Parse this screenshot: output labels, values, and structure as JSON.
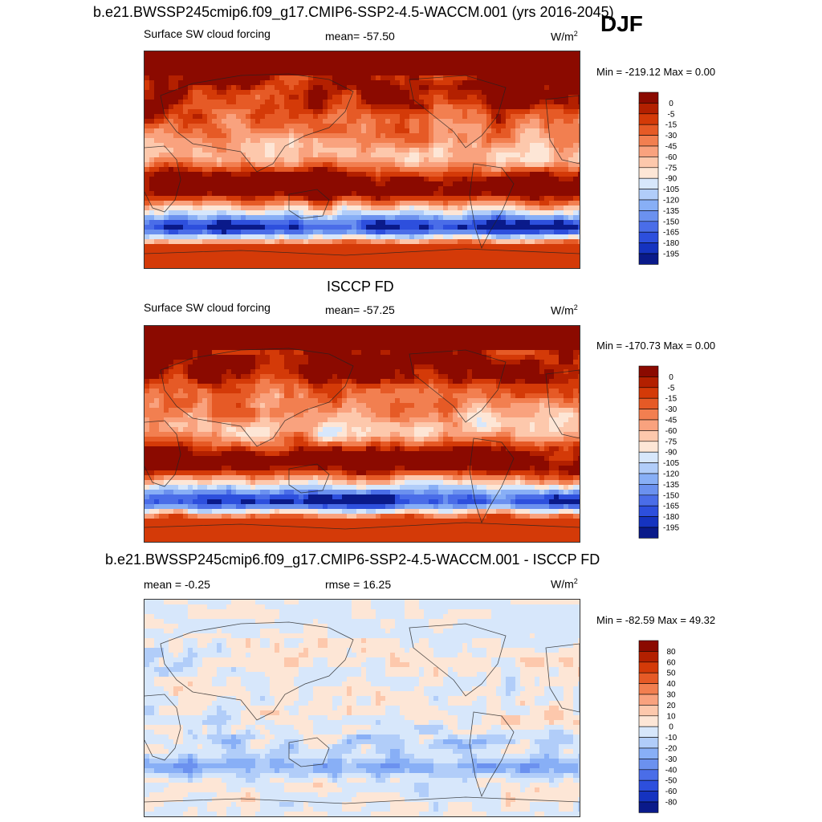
{
  "season": "DJF",
  "panels": [
    {
      "title": "b.e21.BWSSP245cmip6.f09_g17.CMIP6-SSP2-4.5-WACCM.001 (yrs 2016-2045)",
      "left_label": "Surface SW cloud forcing",
      "center_label": "mean= -57.50",
      "units": "W/m",
      "units_exp": "2",
      "minmax": "Min = -219.12 Max =   0.00",
      "scale": "abs"
    },
    {
      "title": "ISCCP FD",
      "left_label": "Surface SW cloud forcing",
      "center_label": "mean= -57.25",
      "units": "W/m",
      "units_exp": "2",
      "minmax": "Min = -170.73 Max =   0.00",
      "scale": "abs"
    },
    {
      "title": "b.e21.BWSSP245cmip6.f09_g17.CMIP6-SSP2-4.5-WACCM.001 - ISCCP FD",
      "left_label": "mean =  -0.25",
      "center_label": "rmse =  16.25",
      "units": "W/m",
      "units_exp": "2",
      "minmax": "Min = -82.59 Max =  49.32",
      "scale": "diff"
    }
  ],
  "chart_data": [
    {
      "type": "heatmap",
      "title": "b.e21.BWSSP245cmip6.f09_g17.CMIP6-SSP2-4.5-WACCM.001 (yrs 2016-2045)",
      "variable": "Surface SW cloud forcing",
      "units": "W/m^2",
      "mean": -57.5,
      "min": -219.12,
      "max": 0.0,
      "colorbar_levels": [
        "0",
        "-5",
        "-15",
        "-30",
        "-45",
        "-60",
        "-75",
        "-90",
        "-105",
        "-120",
        "-135",
        "-150",
        "-165",
        "-180",
        "-195"
      ],
      "colorbar_colors": [
        "#8b0a00",
        "#b32000",
        "#d43a08",
        "#e65a26",
        "#f27f50",
        "#f9a27e",
        "#fdc8ac",
        "#fde6d6",
        "#d7e7fb",
        "#b1cdf9",
        "#88aff6",
        "#6b91ef",
        "#4a6de8",
        "#2d4fdd",
        "#1533c0",
        "#0a1a8a"
      ]
    },
    {
      "type": "heatmap",
      "title": "ISCCP FD",
      "variable": "Surface SW cloud forcing",
      "units": "W/m^2",
      "mean": -57.25,
      "min": -170.73,
      "max": 0.0,
      "colorbar_levels": [
        "0",
        "-5",
        "-15",
        "-30",
        "-45",
        "-60",
        "-75",
        "-90",
        "-105",
        "-120",
        "-135",
        "-150",
        "-165",
        "-180",
        "-195"
      ],
      "colorbar_colors": [
        "#8b0a00",
        "#b32000",
        "#d43a08",
        "#e65a26",
        "#f27f50",
        "#f9a27e",
        "#fdc8ac",
        "#fde6d6",
        "#d7e7fb",
        "#b1cdf9",
        "#88aff6",
        "#6b91ef",
        "#4a6de8",
        "#2d4fdd",
        "#1533c0",
        "#0a1a8a"
      ]
    },
    {
      "type": "heatmap",
      "title": "b.e21.BWSSP245cmip6.f09_g17.CMIP6-SSP2-4.5-WACCM.001 - ISCCP FD",
      "units": "W/m^2",
      "mean": -0.25,
      "rmse": 16.25,
      "min": -82.59,
      "max": 49.32,
      "colorbar_levels": [
        "80",
        "60",
        "50",
        "40",
        "30",
        "20",
        "10",
        "0",
        "-10",
        "-20",
        "-30",
        "-40",
        "-50",
        "-60",
        "-80"
      ],
      "colorbar_colors": [
        "#8b0a00",
        "#b32000",
        "#d43a08",
        "#e65a26",
        "#f27f50",
        "#f9a27e",
        "#fdc8ac",
        "#fde6d6",
        "#d7e7fb",
        "#b1cdf9",
        "#88aff6",
        "#6b91ef",
        "#4a6de8",
        "#2d4fdd",
        "#1533c0",
        "#0a1a8a"
      ]
    }
  ]
}
